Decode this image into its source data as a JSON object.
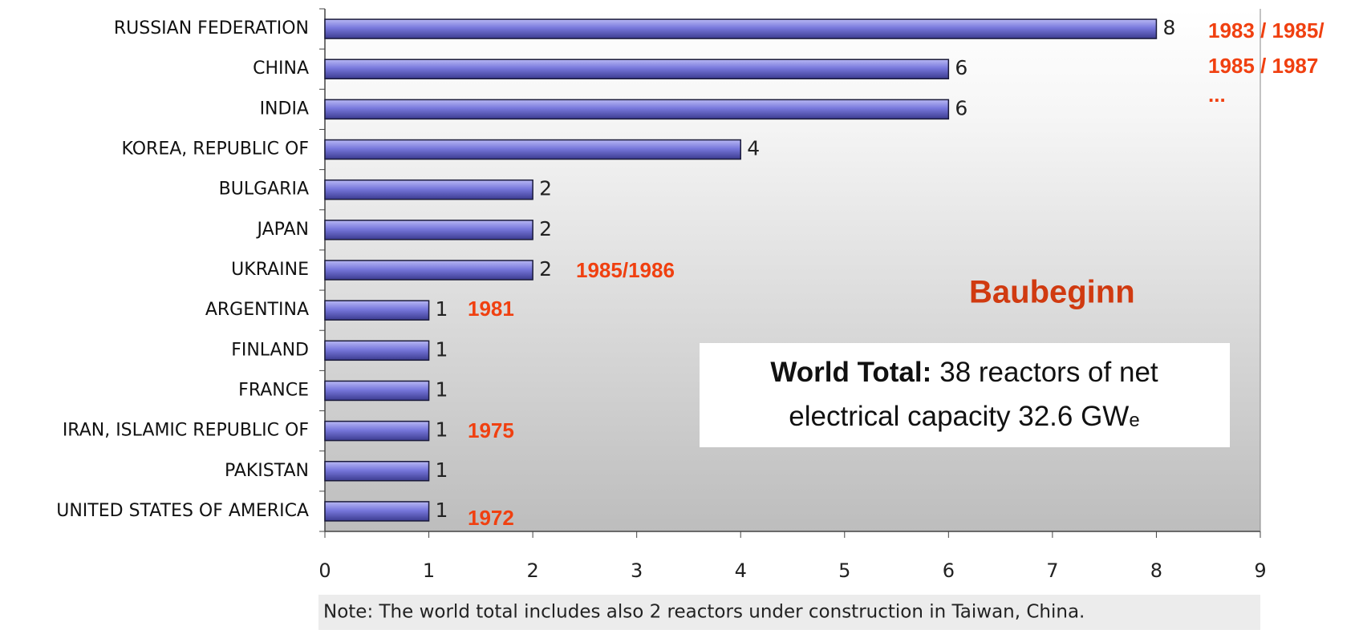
{
  "chart_data": {
    "type": "bar",
    "orientation": "horizontal",
    "categories": [
      "RUSSIAN FEDERATION",
      "CHINA",
      "INDIA",
      "KOREA, REPUBLIC OF",
      "BULGARIA",
      "JAPAN",
      "UKRAINE",
      "ARGENTINA",
      "FINLAND",
      "FRANCE",
      "IRAN, ISLAMIC REPUBLIC OF",
      "PAKISTAN",
      "UNITED STATES OF AMERICA"
    ],
    "values": [
      8,
      6,
      6,
      4,
      2,
      2,
      2,
      1,
      1,
      1,
      1,
      1,
      1
    ],
    "color": "#7878dc",
    "xlim": [
      0,
      9
    ],
    "xticks": [
      0,
      1,
      2,
      3,
      4,
      5,
      6,
      7,
      8,
      9
    ],
    "annotations": [
      "1983 / 1985/",
      "1985 / 1987",
      "...",
      "1985/1986",
      "1981",
      "1975",
      "1972",
      "Baubeginn"
    ],
    "box_bold": "World Total:",
    "box_line1": "38 reactors of net",
    "box_line2": "electrical capacity 32.6 GW",
    "box_sub": "e",
    "note": "Note: The world total includes also 2 reactors under construction in Taiwan, China."
  }
}
